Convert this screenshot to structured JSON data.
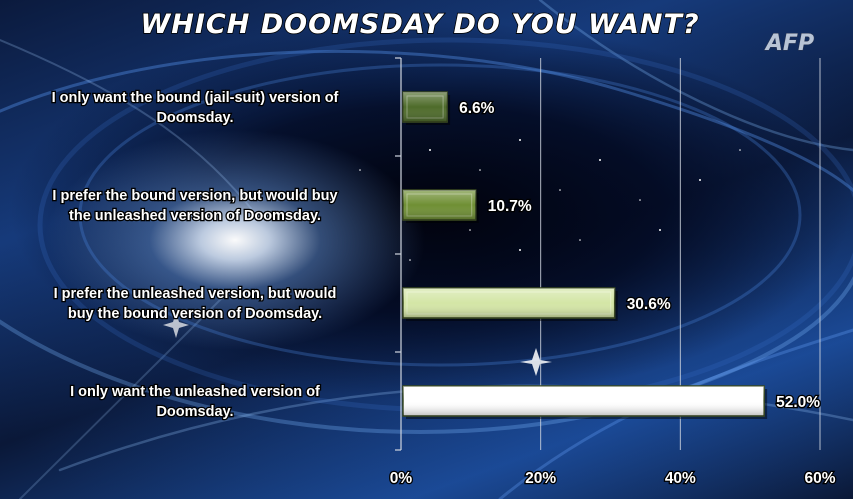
{
  "logo": "AFP",
  "chart_data": {
    "type": "bar",
    "orientation": "horizontal",
    "title": "WHICH DOOMSDAY DO YOU WANT?",
    "categories": [
      "I only want the bound (jail-suit) version of Doomsday.",
      "I prefer the bound version, but would buy the unleashed version of Doomsday.",
      "I prefer the unleashed version, but would buy the bound version of Doomsday.",
      "I only want the unleashed version of Doomsday."
    ],
    "category_lines": [
      [
        "I only want the bound (jail-suit) version of",
        "Doomsday."
      ],
      [
        "I prefer the bound version, but would buy",
        "the unleashed version of Doomsday."
      ],
      [
        "I prefer the unleashed version, but would",
        "buy the bound version of Doomsday."
      ],
      [
        "I only want the unleashed version of",
        "Doomsday."
      ]
    ],
    "values": [
      6.6,
      10.7,
      30.6,
      52.0
    ],
    "value_labels": [
      "6.6%",
      "10.7%",
      "30.6%",
      "52.0%"
    ],
    "bar_colors": [
      "#4e6b2a",
      "#6f8f34",
      "#d4e6a6",
      "#ffffff"
    ],
    "xlim": [
      0,
      60
    ],
    "xticks": [
      0,
      20,
      40,
      60
    ],
    "xtick_labels": [
      "0%",
      "20%",
      "40%",
      "60%"
    ],
    "xlabel": "",
    "ylabel": "",
    "grid": true,
    "legend": "none"
  }
}
